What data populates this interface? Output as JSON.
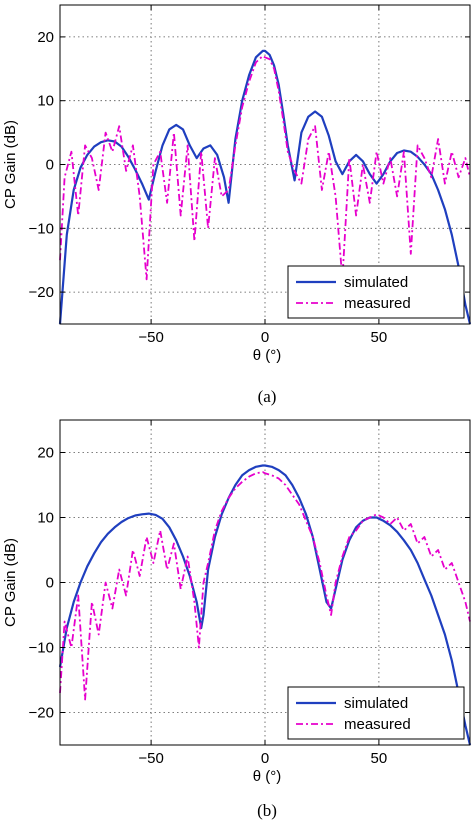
{
  "chart_data": [
    {
      "type": "line",
      "panel_label": "(a)",
      "ylabel": "CP Gain (dB)",
      "xlabel": "θ (°)",
      "xlim": [
        -90,
        90
      ],
      "ylim": [
        -25,
        25
      ],
      "xticks": [
        -50,
        0,
        50
      ],
      "xtick_labels": [
        "−50",
        "0",
        "50"
      ],
      "yticks": [
        -20,
        -10,
        0,
        10,
        20
      ],
      "ytick_labels": [
        "−20",
        "−10",
        "0",
        "10",
        "20"
      ],
      "grid": true,
      "legend_position": "bottom-right",
      "colors": {
        "simulated": "#1f3fbf",
        "measured": "#e600cc"
      },
      "series": [
        {
          "name": "simulated",
          "x": [
            -90,
            -87,
            -84,
            -81,
            -78,
            -75,
            -72,
            -69,
            -66,
            -63,
            -60,
            -57,
            -54,
            -51,
            -48,
            -45,
            -42,
            -39,
            -36,
            -33,
            -30,
            -27,
            -24,
            -21,
            -18,
            -16,
            -13,
            -10,
            -7,
            -4,
            -1,
            0,
            2,
            4,
            6,
            8,
            10,
            13,
            16,
            19,
            22,
            25,
            28,
            31,
            34,
            37,
            40,
            43,
            46,
            49,
            52,
            55,
            58,
            61,
            64,
            67,
            70,
            73,
            76,
            79,
            82,
            85,
            88,
            90
          ],
          "y": [
            -25,
            -11,
            -4,
            -0.5,
            1.5,
            2.8,
            3.5,
            3.8,
            3.6,
            2.8,
            1.2,
            -0.8,
            -3,
            -5.5,
            -1,
            3,
            5.5,
            6.2,
            5.5,
            3,
            1,
            2.5,
            3,
            1.5,
            -2,
            -6,
            4,
            10,
            14,
            16.8,
            17.8,
            17.8,
            17.2,
            15.5,
            12.5,
            8,
            3,
            -2.5,
            5,
            7.5,
            8.3,
            7.5,
            4.5,
            0.5,
            -1.5,
            0.5,
            1.5,
            0.5,
            -1.5,
            -3,
            -1.5,
            0.5,
            1.8,
            2.2,
            2,
            1.2,
            0,
            -1.5,
            -4,
            -7,
            -11,
            -16,
            -22,
            -25
          ]
        },
        {
          "name": "measured",
          "x": [
            -90,
            -88,
            -85,
            -82,
            -79,
            -76,
            -73,
            -70,
            -67,
            -64,
            -61,
            -58,
            -55,
            -52,
            -49,
            -46,
            -43,
            -40,
            -37,
            -34,
            -31,
            -28,
            -25,
            -22,
            -19,
            -16,
            -13,
            -10,
            -7,
            -4,
            -1,
            0,
            2,
            4,
            6,
            8,
            10,
            13,
            16,
            19,
            22,
            25,
            28,
            31,
            34,
            37,
            40,
            43,
            46,
            49,
            52,
            55,
            58,
            61,
            64,
            67,
            70,
            73,
            76,
            79,
            82,
            85,
            88,
            90
          ],
          "y": [
            -15,
            -2,
            2,
            -8,
            3,
            1,
            -4,
            5,
            2,
            6,
            -1,
            3,
            -5,
            -18,
            0,
            2,
            -6,
            5,
            -8,
            3,
            -12,
            2,
            -10,
            1,
            -5,
            -4,
            3,
            9,
            13,
            16,
            17,
            16.8,
            16.5,
            15,
            11.5,
            7,
            2,
            -1,
            -3,
            4,
            6,
            -4,
            2,
            -5,
            -18,
            1,
            -8,
            0,
            -6,
            2,
            -3,
            1,
            -5,
            2,
            -14,
            3,
            1,
            -2,
            4,
            -3,
            2,
            -2,
            1,
            -2
          ]
        }
      ]
    },
    {
      "type": "line",
      "panel_label": "(b)",
      "ylabel": "CP Gain (dB)",
      "xlabel": "θ (°)",
      "xlim": [
        -90,
        90
      ],
      "ylim": [
        -25,
        25
      ],
      "xticks": [
        -50,
        0,
        50
      ],
      "xtick_labels": [
        "−50",
        "0",
        "50"
      ],
      "yticks": [
        -20,
        -10,
        0,
        10,
        20
      ],
      "ytick_labels": [
        "−20",
        "−10",
        "0",
        "10",
        "20"
      ],
      "grid": true,
      "legend_position": "bottom-right",
      "colors": {
        "simulated": "#1f3fbf",
        "measured": "#e600cc"
      },
      "series": [
        {
          "name": "simulated",
          "x": [
            -90,
            -87,
            -84,
            -81,
            -78,
            -75,
            -72,
            -69,
            -66,
            -63,
            -60,
            -57,
            -54,
            -51,
            -48,
            -45,
            -42,
            -39,
            -36,
            -33,
            -30,
            -28,
            -27,
            -25,
            -22,
            -19,
            -16,
            -13,
            -10,
            -7,
            -4,
            -1,
            0,
            3,
            6,
            9,
            12,
            15,
            18,
            21,
            24,
            27,
            29,
            31,
            34,
            37,
            40,
            43,
            46,
            49,
            52,
            55,
            58,
            61,
            64,
            67,
            70,
            73,
            76,
            79,
            82,
            85,
            88,
            90
          ],
          "y": [
            -13,
            -7,
            -3,
            0,
            2.5,
            4.5,
            6.2,
            7.5,
            8.5,
            9.3,
            9.9,
            10.3,
            10.5,
            10.6,
            10.4,
            9.8,
            8.5,
            6.5,
            4,
            1,
            -3,
            -7,
            -5,
            2,
            7,
            10.5,
            13,
            15,
            16.5,
            17.3,
            17.8,
            18,
            18,
            17.8,
            17.3,
            16.5,
            15,
            13,
            10.5,
            7,
            2,
            -3,
            -4,
            -1,
            3.5,
            6.5,
            8.5,
            9.5,
            10,
            10,
            9.5,
            8.8,
            7.8,
            6.5,
            5,
            3,
            0.5,
            -2,
            -5,
            -8,
            -12,
            -17,
            -22,
            -25
          ]
        },
        {
          "name": "measured",
          "x": [
            -90,
            -88,
            -85,
            -82,
            -79,
            -76,
            -73,
            -70,
            -67,
            -64,
            -61,
            -58,
            -55,
            -52,
            -49,
            -46,
            -43,
            -40,
            -37,
            -34,
            -31,
            -29,
            -27,
            -25,
            -22,
            -19,
            -16,
            -13,
            -10,
            -7,
            -4,
            -1,
            0,
            3,
            6,
            9,
            12,
            15,
            18,
            21,
            24,
            27,
            29,
            31,
            34,
            37,
            40,
            43,
            46,
            49,
            52,
            55,
            58,
            61,
            64,
            67,
            70,
            73,
            76,
            79,
            82,
            85,
            88,
            90
          ],
          "y": [
            -17,
            -6,
            -10,
            -2,
            -18,
            -3,
            -8,
            0,
            -4,
            2,
            -2,
            5,
            1,
            7,
            3,
            8,
            2,
            6,
            -1,
            4,
            -3,
            -10,
            0,
            3,
            8,
            11,
            13,
            14.5,
            15.5,
            16.3,
            16.8,
            17,
            16.8,
            16.5,
            16,
            15,
            13.5,
            12,
            9.5,
            7,
            3,
            -2,
            -5,
            0,
            4,
            7,
            8,
            9.5,
            10,
            10.5,
            10,
            9,
            10,
            8,
            9,
            6,
            7,
            4,
            5,
            2,
            3,
            0,
            -3,
            -6
          ]
        }
      ]
    }
  ]
}
